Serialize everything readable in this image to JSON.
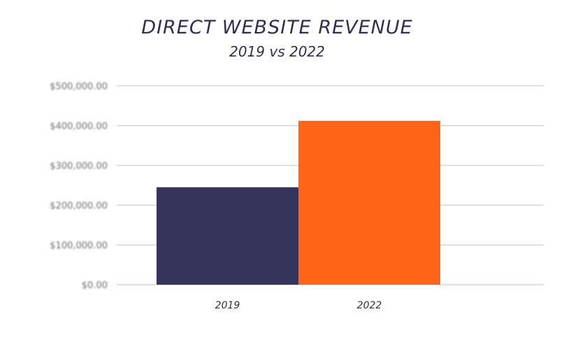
{
  "chart_data": {
    "type": "bar",
    "title": "DIRECT WEBSITE REVENUE",
    "subtitle": "2019 vs 2022",
    "categories": [
      "2019",
      "2022"
    ],
    "values": [
      245000,
      412000
    ],
    "colors": [
      "#35335a",
      "#ff6418"
    ],
    "ylim": [
      0,
      500000
    ],
    "yticks": [
      0,
      100000,
      200000,
      300000,
      400000,
      500000
    ],
    "ytick_labels": [
      "$0.00",
      "$100,000.00",
      "$200,000.00",
      "$300,000.00",
      "$400,000.00",
      "$500,000.00"
    ],
    "grid": true,
    "xlabel": "",
    "ylabel": ""
  }
}
